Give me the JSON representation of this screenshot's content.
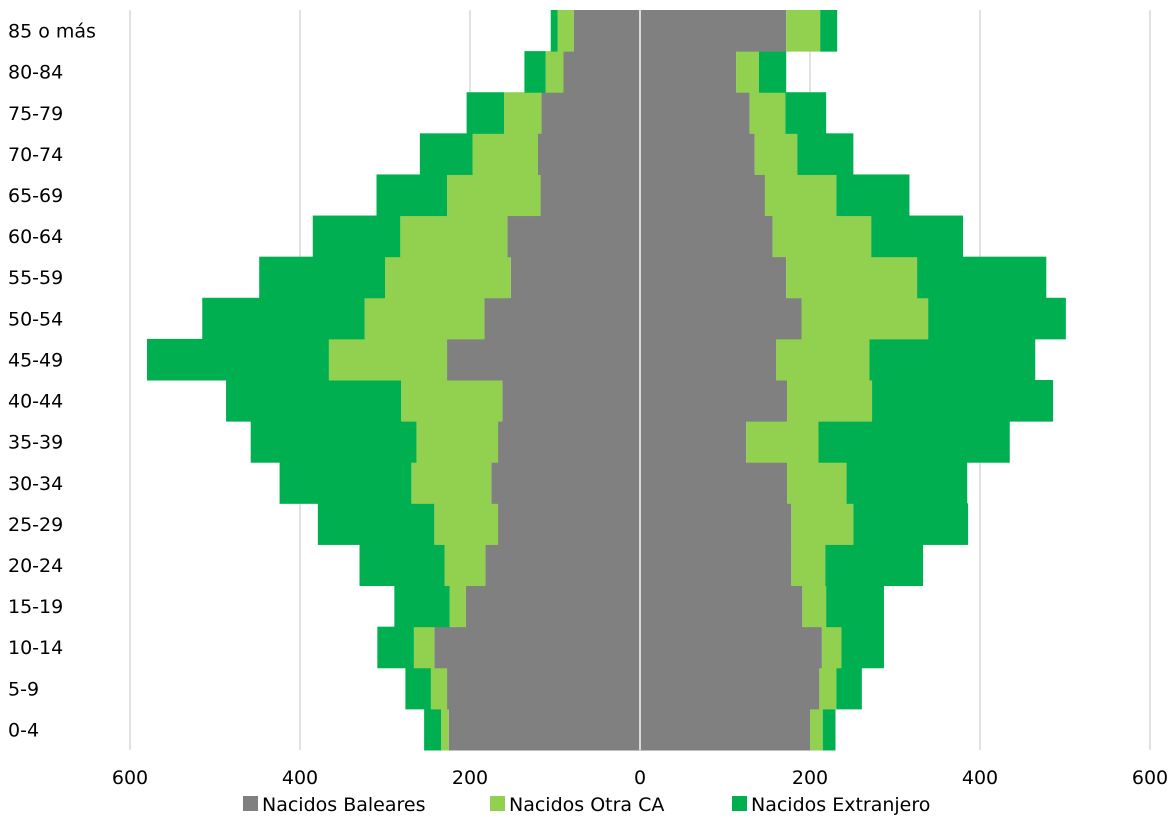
{
  "chart_data": {
    "type": "bar",
    "orientation": "horizontal",
    "layout": "population-pyramid-stacked",
    "categories": [
      "0-4",
      "5-9",
      "10-14",
      "15-19",
      "20-24",
      "25-29",
      "30-34",
      "35-39",
      "40-44",
      "45-49",
      "50-54",
      "55-59",
      "60-64",
      "65-69",
      "70-74",
      "75-79",
      "80-84",
      "85 o más"
    ],
    "xlim": [
      -600,
      600
    ],
    "xticks": [
      -600,
      -400,
      -200,
      0,
      200,
      400,
      600
    ],
    "xtick_labels": [
      "600",
      "400",
      "200",
      "0",
      "200",
      "400",
      "600"
    ],
    "grid": true,
    "legend_position": "bottom",
    "colors": {
      "baleares": "#808080",
      "otra_ca": "#92d050",
      "extranjero": "#00b050",
      "grid": "#d9d9d9",
      "axis": "#d9d9d9"
    },
    "series": [
      {
        "name": "Nacidos Baleares",
        "key": "baleares",
        "left": [
          -225,
          -227,
          -242,
          -205,
          -182,
          -167,
          -175,
          -167,
          -162,
          -227,
          -183,
          -152,
          -156,
          -117,
          -120,
          -116,
          -90,
          -78
        ],
        "right": [
          200,
          211,
          214,
          191,
          178,
          178,
          173,
          125,
          173,
          160,
          190,
          172,
          156,
          147,
          135,
          129,
          113,
          172
        ]
      },
      {
        "name": "Nacidos Otra CA",
        "key": "otra_ca",
        "left": [
          -9,
          -19,
          -24,
          -19,
          -48,
          -75,
          -94,
          -96,
          -119,
          -139,
          -141,
          -148,
          -126,
          -110,
          -77,
          -44,
          -21,
          -19
        ],
        "right": [
          15,
          20,
          23,
          28,
          40,
          73,
          70,
          85,
          100,
          110,
          149,
          154,
          116,
          84,
          50,
          42,
          27,
          40
        ]
      },
      {
        "name": "Nacidos Extranjero",
        "key": "extranjero",
        "left": [
          -20,
          -30,
          -43,
          -65,
          -100,
          -137,
          -155,
          -195,
          -206,
          -214,
          -191,
          -148,
          -103,
          -83,
          -62,
          -44,
          -25,
          -8
        ],
        "right": [
          15,
          30,
          50,
          68,
          115,
          135,
          142,
          225,
          213,
          195,
          162,
          152,
          108,
          86,
          66,
          48,
          32,
          20
        ]
      }
    ]
  }
}
